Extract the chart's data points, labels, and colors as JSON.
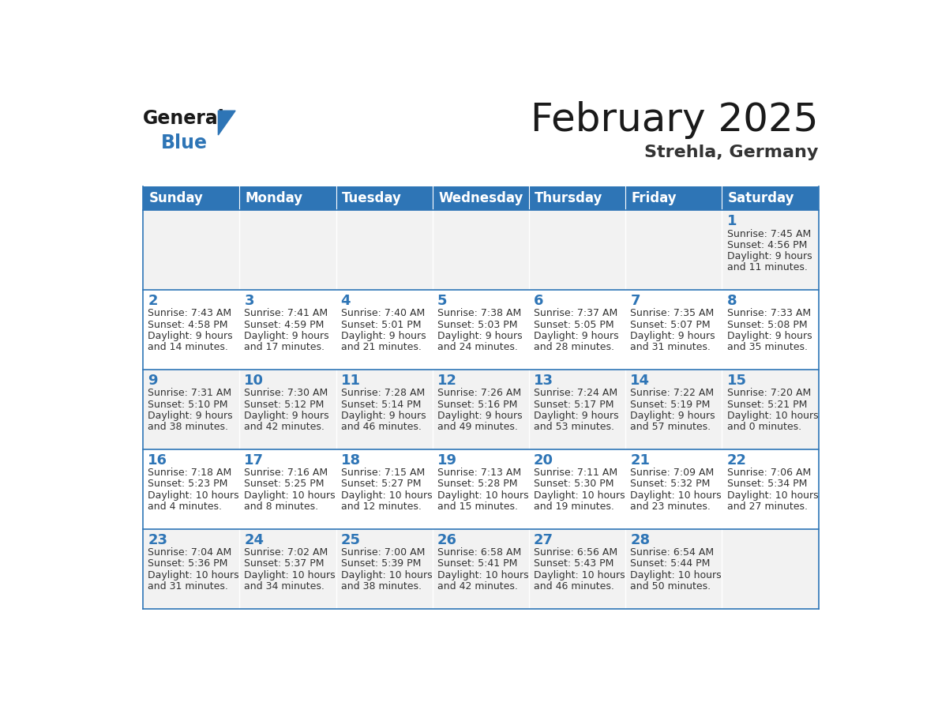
{
  "title": "February 2025",
  "subtitle": "Strehla, Germany",
  "header_bg": "#2E75B6",
  "header_text_color": "#FFFFFF",
  "cell_bg_odd": "#F2F2F2",
  "cell_bg_even": "#FFFFFF",
  "day_headers": [
    "Sunday",
    "Monday",
    "Tuesday",
    "Wednesday",
    "Thursday",
    "Friday",
    "Saturday"
  ],
  "title_color": "#1A1A1A",
  "subtitle_color": "#333333",
  "day_num_color": "#2E75B6",
  "info_color": "#333333",
  "line_color": "#2E75B6",
  "logo_general_color": "#1A1A1A",
  "logo_blue_color": "#2E75B6",
  "title_fontsize": 36,
  "subtitle_fontsize": 16,
  "header_fontsize": 12,
  "day_num_fontsize": 13,
  "info_fontsize": 9,
  "weeks": [
    [
      {
        "day": null,
        "info": ""
      },
      {
        "day": null,
        "info": ""
      },
      {
        "day": null,
        "info": ""
      },
      {
        "day": null,
        "info": ""
      },
      {
        "day": null,
        "info": ""
      },
      {
        "day": null,
        "info": ""
      },
      {
        "day": 1,
        "info": "Sunrise: 7:45 AM\nSunset: 4:56 PM\nDaylight: 9 hours\nand 11 minutes."
      }
    ],
    [
      {
        "day": 2,
        "info": "Sunrise: 7:43 AM\nSunset: 4:58 PM\nDaylight: 9 hours\nand 14 minutes."
      },
      {
        "day": 3,
        "info": "Sunrise: 7:41 AM\nSunset: 4:59 PM\nDaylight: 9 hours\nand 17 minutes."
      },
      {
        "day": 4,
        "info": "Sunrise: 7:40 AM\nSunset: 5:01 PM\nDaylight: 9 hours\nand 21 minutes."
      },
      {
        "day": 5,
        "info": "Sunrise: 7:38 AM\nSunset: 5:03 PM\nDaylight: 9 hours\nand 24 minutes."
      },
      {
        "day": 6,
        "info": "Sunrise: 7:37 AM\nSunset: 5:05 PM\nDaylight: 9 hours\nand 28 minutes."
      },
      {
        "day": 7,
        "info": "Sunrise: 7:35 AM\nSunset: 5:07 PM\nDaylight: 9 hours\nand 31 minutes."
      },
      {
        "day": 8,
        "info": "Sunrise: 7:33 AM\nSunset: 5:08 PM\nDaylight: 9 hours\nand 35 minutes."
      }
    ],
    [
      {
        "day": 9,
        "info": "Sunrise: 7:31 AM\nSunset: 5:10 PM\nDaylight: 9 hours\nand 38 minutes."
      },
      {
        "day": 10,
        "info": "Sunrise: 7:30 AM\nSunset: 5:12 PM\nDaylight: 9 hours\nand 42 minutes."
      },
      {
        "day": 11,
        "info": "Sunrise: 7:28 AM\nSunset: 5:14 PM\nDaylight: 9 hours\nand 46 minutes."
      },
      {
        "day": 12,
        "info": "Sunrise: 7:26 AM\nSunset: 5:16 PM\nDaylight: 9 hours\nand 49 minutes."
      },
      {
        "day": 13,
        "info": "Sunrise: 7:24 AM\nSunset: 5:17 PM\nDaylight: 9 hours\nand 53 minutes."
      },
      {
        "day": 14,
        "info": "Sunrise: 7:22 AM\nSunset: 5:19 PM\nDaylight: 9 hours\nand 57 minutes."
      },
      {
        "day": 15,
        "info": "Sunrise: 7:20 AM\nSunset: 5:21 PM\nDaylight: 10 hours\nand 0 minutes."
      }
    ],
    [
      {
        "day": 16,
        "info": "Sunrise: 7:18 AM\nSunset: 5:23 PM\nDaylight: 10 hours\nand 4 minutes."
      },
      {
        "day": 17,
        "info": "Sunrise: 7:16 AM\nSunset: 5:25 PM\nDaylight: 10 hours\nand 8 minutes."
      },
      {
        "day": 18,
        "info": "Sunrise: 7:15 AM\nSunset: 5:27 PM\nDaylight: 10 hours\nand 12 minutes."
      },
      {
        "day": 19,
        "info": "Sunrise: 7:13 AM\nSunset: 5:28 PM\nDaylight: 10 hours\nand 15 minutes."
      },
      {
        "day": 20,
        "info": "Sunrise: 7:11 AM\nSunset: 5:30 PM\nDaylight: 10 hours\nand 19 minutes."
      },
      {
        "day": 21,
        "info": "Sunrise: 7:09 AM\nSunset: 5:32 PM\nDaylight: 10 hours\nand 23 minutes."
      },
      {
        "day": 22,
        "info": "Sunrise: 7:06 AM\nSunset: 5:34 PM\nDaylight: 10 hours\nand 27 minutes."
      }
    ],
    [
      {
        "day": 23,
        "info": "Sunrise: 7:04 AM\nSunset: 5:36 PM\nDaylight: 10 hours\nand 31 minutes."
      },
      {
        "day": 24,
        "info": "Sunrise: 7:02 AM\nSunset: 5:37 PM\nDaylight: 10 hours\nand 34 minutes."
      },
      {
        "day": 25,
        "info": "Sunrise: 7:00 AM\nSunset: 5:39 PM\nDaylight: 10 hours\nand 38 minutes."
      },
      {
        "day": 26,
        "info": "Sunrise: 6:58 AM\nSunset: 5:41 PM\nDaylight: 10 hours\nand 42 minutes."
      },
      {
        "day": 27,
        "info": "Sunrise: 6:56 AM\nSunset: 5:43 PM\nDaylight: 10 hours\nand 46 minutes."
      },
      {
        "day": 28,
        "info": "Sunrise: 6:54 AM\nSunset: 5:44 PM\nDaylight: 10 hours\nand 50 minutes."
      },
      {
        "day": null,
        "info": ""
      }
    ]
  ]
}
